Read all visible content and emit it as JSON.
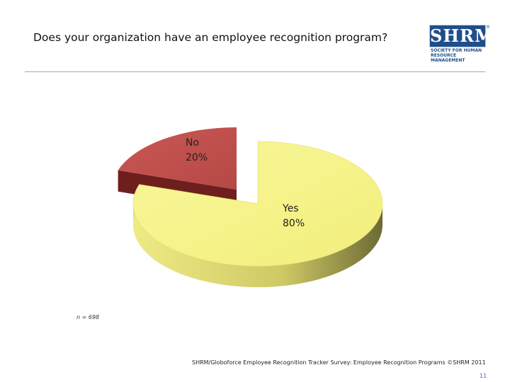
{
  "slide": {
    "title": "Does your organization have an employee recognition program?",
    "sample_size": "n = 698",
    "source": "SHRM/Globoforce Employee Recognition Tracker Survey: Employee Recognition Programs ©SHRM 2011",
    "page_number": "11"
  },
  "logo": {
    "wordmark": "SHRM",
    "registered": "®",
    "line1": "SOCIETY FOR HUMAN",
    "line2": "RESOURCE MANAGEMENT"
  },
  "colors": {
    "yes_top": "#f7f58a",
    "yes_side": "#d6d168",
    "no_top": "#c0504d",
    "no_side": "#6e1f1d",
    "brand": "#1f4e8c"
  },
  "chart_data": {
    "type": "pie",
    "title": "",
    "categories": [
      "Yes",
      "No"
    ],
    "values": [
      80,
      20
    ],
    "labels": [
      {
        "name": "Yes",
        "value": "80%"
      },
      {
        "name": "No",
        "value": "20%"
      }
    ],
    "exploded": "No",
    "three_d": true,
    "legend": "none"
  }
}
